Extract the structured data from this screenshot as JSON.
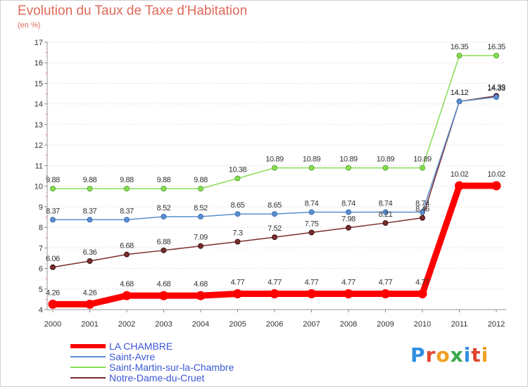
{
  "chart_data": {
    "type": "line",
    "title": "Evolution du Taux de Taxe d'Habitation",
    "subtitle": "(en %)",
    "categories": [
      "2000",
      "2001",
      "2002",
      "2003",
      "2004",
      "2005",
      "2006",
      "2007",
      "2008",
      "2009",
      "2010",
      "2011",
      "2012"
    ],
    "yticks": [
      "4",
      "5",
      "6",
      "7",
      "8",
      "9",
      "10",
      "11",
      "12",
      "13",
      "14",
      "15",
      "16",
      "17"
    ],
    "ylim": [
      4,
      17
    ],
    "grid": "horizontal-dotted",
    "legend_placement": "bottom-left",
    "series": [
      {
        "name": "LA CHAMBRE",
        "color": "#ff0000",
        "values": [
          4.26,
          4.26,
          4.68,
          4.68,
          4.68,
          4.77,
          4.77,
          4.77,
          4.77,
          4.77,
          4.77,
          10.02,
          10.02
        ],
        "labels": [
          "4.26",
          "4.26",
          "4.68",
          "4.68",
          "4.68",
          "4.77",
          "4.77",
          "4.77",
          "4.77",
          "4.77",
          "4.77",
          "10.02",
          "10.02"
        ]
      },
      {
        "name": "Saint-Avre",
        "color": "#5b8fcf",
        "values": [
          8.37,
          8.37,
          8.37,
          8.52,
          8.52,
          8.65,
          8.65,
          8.74,
          8.74,
          8.74,
          8.74,
          14.12,
          14.33
        ],
        "labels": [
          "8.37",
          "8.37",
          "8.37",
          "8.52",
          "8.52",
          "8.65",
          "8.65",
          "8.74",
          "8.74",
          "8.74",
          "8.74",
          "14.12",
          "14.33"
        ]
      },
      {
        "name": "Saint-Martin-sur-la-Chambre",
        "color": "#88dd55",
        "values": [
          9.88,
          9.88,
          9.88,
          9.88,
          9.88,
          10.38,
          10.89,
          10.89,
          10.89,
          10.89,
          10.89,
          16.35,
          16.35
        ],
        "labels": [
          "9.88",
          "9.88",
          "9.88",
          "9.88",
          "9.88",
          "10.38",
          "10.89",
          "10.89",
          "10.89",
          "10.89",
          "10.89",
          "16.35",
          "16.35"
        ]
      },
      {
        "name": "Notre-Dame-du-Cruet",
        "color": "#7a2e2e",
        "values": [
          6.06,
          6.36,
          6.68,
          6.88,
          7.09,
          7.3,
          7.52,
          7.75,
          7.98,
          8.21,
          8.46,
          14.12,
          14.39
        ],
        "labels": [
          "6.06",
          "6.36",
          "6.68",
          "6.88",
          "7.09",
          "7.3",
          "7.52",
          "7.75",
          "7.98",
          "8.21",
          "8.46",
          "14.12",
          "14.39"
        ]
      }
    ]
  },
  "logo": {
    "letters": [
      "P",
      "r",
      "o",
      "x",
      "i",
      "t",
      "i"
    ],
    "colors": [
      "#2f8fe0",
      "#e0482e",
      "#f0a020",
      "#3aa84a",
      "#2f8fe0",
      "#e0482e",
      "#f0a020"
    ]
  }
}
